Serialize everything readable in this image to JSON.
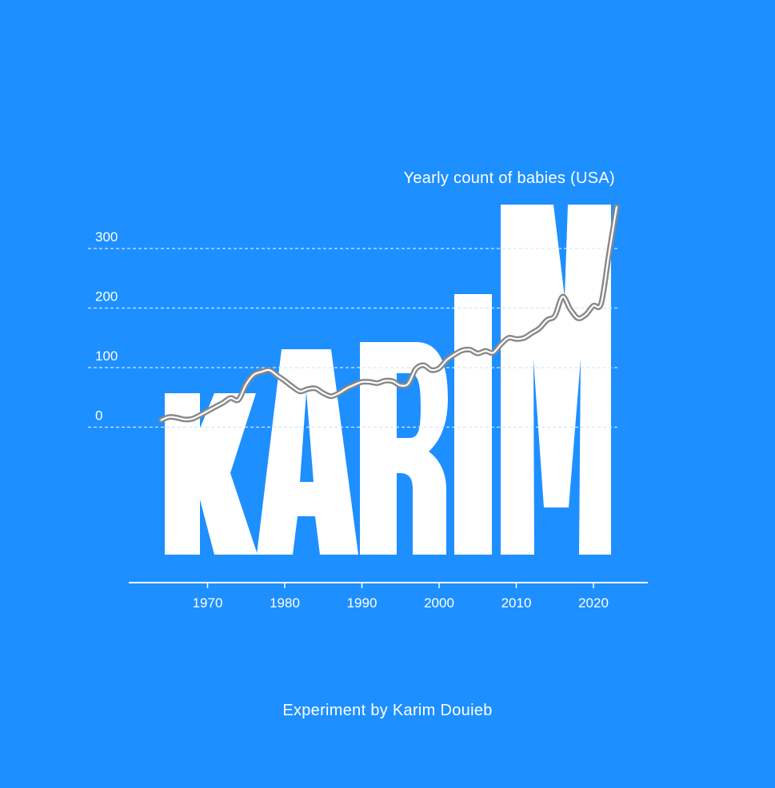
{
  "chart_data": {
    "type": "line",
    "title": "Yearly count of babies (USA)",
    "xlabel": "",
    "ylabel": "",
    "x_ticks": [
      1970,
      1980,
      1990,
      2000,
      2010,
      2020
    ],
    "y_ticks": [
      0,
      100,
      200,
      300
    ],
    "ylim": [
      0,
      375
    ],
    "grid": true,
    "background_text": "KARIM",
    "colors": {
      "background": "#1e8fff",
      "letters": "#ffffff",
      "line": "#888888",
      "grid": "#d6e6ff"
    },
    "series": [
      {
        "x": [
          1964,
          1965,
          1966,
          1967,
          1968,
          1969,
          1970,
          1971,
          1972,
          1973,
          1974,
          1975,
          1976,
          1977,
          1978,
          1979,
          1980,
          1981,
          1982,
          1983,
          1984,
          1985,
          1986,
          1987,
          1988,
          1989,
          1990,
          1991,
          1992,
          1993,
          1994,
          1995,
          1996,
          1997,
          1998,
          1999,
          2000,
          2001,
          2002,
          2003,
          2004,
          2005,
          2006,
          2007,
          2008,
          2009,
          2010,
          2011,
          2012,
          2013,
          2014,
          2015,
          2016,
          2017,
          2018,
          2019,
          2020,
          2021,
          2022,
          2023
        ],
        "y": [
          12,
          17,
          16,
          13,
          14,
          20,
          27,
          34,
          41,
          49,
          46,
          72,
          88,
          93,
          96,
          87,
          78,
          68,
          60,
          64,
          65,
          57,
          52,
          57,
          65,
          71,
          76,
          76,
          74,
          78,
          77,
          70,
          73,
          98,
          104,
          96,
          99,
          113,
          122,
          129,
          130,
          124,
          128,
          125,
          139,
          150,
          148,
          150,
          158,
          166,
          180,
          187,
          219,
          198,
          183,
          189,
          204,
          208,
          290,
          370
        ]
      }
    ]
  },
  "credit": "Experiment by Karim Douieb"
}
